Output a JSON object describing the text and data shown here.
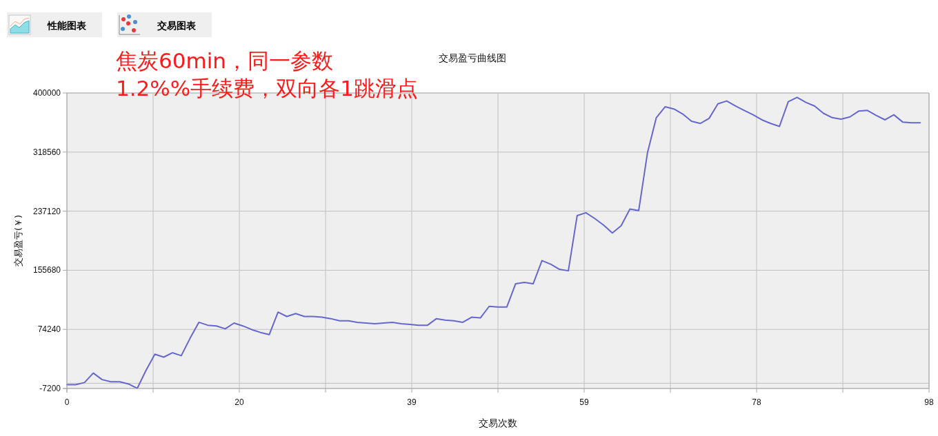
{
  "chart_data": {
    "type": "line",
    "title": "交易盈亏曲线图",
    "xlabel": "交易次数",
    "ylabel": "交易盈亏(￥)",
    "annotations": [
      "性能图表",
      "交易图表",
      "焦炭60min，同一参数",
      "1.2%%手续费，双向各1跳滑点"
    ],
    "x": [
      0,
      1,
      2,
      3,
      4,
      5,
      6,
      7,
      8,
      9,
      10,
      11,
      12,
      13,
      14,
      15,
      16,
      17,
      18,
      19,
      20,
      21,
      22,
      23,
      24,
      25,
      26,
      27,
      28,
      29,
      30,
      31,
      32,
      33,
      34,
      35,
      36,
      37,
      38,
      39,
      40,
      41,
      42,
      43,
      44,
      45,
      46,
      47,
      48,
      49,
      50,
      51,
      52,
      53,
      54,
      55,
      56,
      57,
      58,
      59,
      60,
      61,
      62,
      63,
      64,
      65,
      66,
      67,
      68,
      69,
      70,
      71,
      72,
      73,
      74,
      75,
      76,
      77,
      78,
      79,
      80,
      81,
      82,
      83,
      84,
      85,
      86,
      87,
      88,
      89,
      90,
      91,
      92,
      93,
      94,
      95,
      96,
      97
    ],
    "values": [
      -2000,
      -2000,
      1000,
      14000,
      5000,
      2000,
      2000,
      -1000,
      -7000,
      18000,
      40000,
      36000,
      42000,
      38000,
      62000,
      84000,
      80000,
      79000,
      75000,
      83000,
      79000,
      74000,
      70000,
      67000,
      98000,
      92000,
      96000,
      92000,
      92000,
      91000,
      89000,
      86000,
      86000,
      84000,
      83000,
      82000,
      83000,
      84000,
      82000,
      81000,
      80000,
      80000,
      89000,
      87000,
      86000,
      84000,
      91000,
      90000,
      106000,
      105000,
      105000,
      137000,
      139000,
      137000,
      169000,
      164000,
      157000,
      155000,
      231000,
      235000,
      227000,
      218000,
      207000,
      217000,
      240000,
      238000,
      318000,
      366000,
      381000,
      378000,
      371000,
      361000,
      358000,
      365000,
      385000,
      389000,
      382000,
      376000,
      370000,
      363000,
      358000,
      354000,
      388000,
      394000,
      387000,
      382000,
      372000,
      366000,
      364000,
      367000,
      375000,
      376000,
      369000,
      363000,
      370000,
      360000,
      359000,
      359000
    ],
    "color": "#6666cc",
    "xlim": [
      0,
      98
    ],
    "xticks": [
      0,
      {
        "value": 9.8,
        "label": null
      },
      {
        "value": 19.6,
        "label": "20"
      },
      {
        "value": 29.4,
        "label": null
      },
      {
        "value": 39.2,
        "label": "39"
      },
      {
        "value": 49,
        "label": null
      },
      {
        "value": 58.8,
        "label": "59"
      },
      {
        "value": 68.6,
        "label": null
      },
      {
        "value": 78.4,
        "label": "78"
      },
      {
        "value": 88.2,
        "label": null
      },
      98
    ],
    "ylim": [
      -7200,
      400000
    ],
    "yticks": [
      -7200,
      74240,
      155680,
      237120,
      318560,
      400000
    ],
    "grid": true,
    "ref_lines": [
      {
        "axis": "y",
        "value": 0,
        "color": "#c0c0c0"
      }
    ]
  }
}
